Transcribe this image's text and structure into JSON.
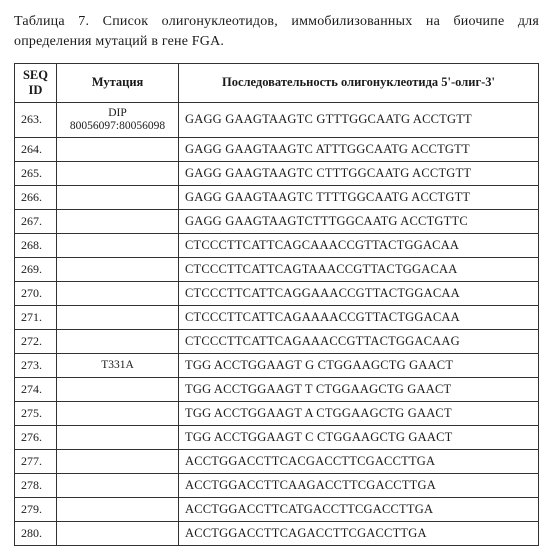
{
  "caption_prefix": "Таблица 7. ",
  "caption_text": "Список олигонуклеотидов, иммобилизованных на биочипе для определения мутаций в гене FGA.",
  "columns": {
    "c1": "SEQ ID",
    "c2": "Мутация",
    "c3": "Последовательность олигонуклеотида 5'-олиг-3'"
  },
  "rows": [
    {
      "seq": "263.",
      "mut": "DIP 80056097:80056098",
      "oligo": "GAGG GAAGTAAGTC GTTTGGCAATG ACCTGTT"
    },
    {
      "seq": "264.",
      "mut": "",
      "oligo": "GAGG GAAGTAAGTC ATTTGGCAATG ACCTGTT"
    },
    {
      "seq": "265.",
      "mut": "",
      "oligo": "GAGG GAAGTAAGTC CTTTGGCAATG ACCTGTT"
    },
    {
      "seq": "266.",
      "mut": "",
      "oligo": "GAGG GAAGTAAGTC TTTTGGCAATG ACCTGTT"
    },
    {
      "seq": "267.",
      "mut": "",
      "oligo": "GAGG GAAGTAAGTCTTTGGCAATG ACCTGTTC"
    },
    {
      "seq": "268.",
      "mut": "",
      "oligo": "CTCCCTTCATTCAGCAAACCGTTACTGGACAA"
    },
    {
      "seq": "269.",
      "mut": "",
      "oligo": "CTCCCTTCATTCAGTAAACCGTTACTGGACAA"
    },
    {
      "seq": "270.",
      "mut": "",
      "oligo": "CTCCCTTCATTCAGGAAACCGTTACTGGACAA"
    },
    {
      "seq": "271.",
      "mut": "",
      "oligo": "CTCCCTTCATTCAGAAAACCGTTACTGGACAA"
    },
    {
      "seq": "272.",
      "mut": "",
      "oligo": "CTCCCTTCATTCAGAAACCGTTACTGGACAAG"
    },
    {
      "seq": "273.",
      "mut": "T331A",
      "oligo": "TGG ACCTGGAAGT G CTGGAAGCTG GAACT"
    },
    {
      "seq": "274.",
      "mut": "",
      "oligo": "TGG ACCTGGAAGT T CTGGAAGCTG GAACT"
    },
    {
      "seq": "275.",
      "mut": "",
      "oligo": "TGG ACCTGGAAGT A CTGGAAGCTG GAACT"
    },
    {
      "seq": "276.",
      "mut": "",
      "oligo": "TGG ACCTGGAAGT C CTGGAAGCTG GAACT"
    },
    {
      "seq": "277.",
      "mut": "",
      "oligo": "ACCTGGACCTTCACGACCTTCGACCTTGA"
    },
    {
      "seq": "278.",
      "mut": "",
      "oligo": "ACCTGGACCTTCAAGACCTTCGACCTTGA"
    },
    {
      "seq": "279.",
      "mut": "",
      "oligo": "ACCTGGACCTTCATGACCTTCGACCTTGA"
    },
    {
      "seq": "280.",
      "mut": "",
      "oligo": "ACCTGGACCTTCAGACCTTCGACCTTGA"
    }
  ]
}
